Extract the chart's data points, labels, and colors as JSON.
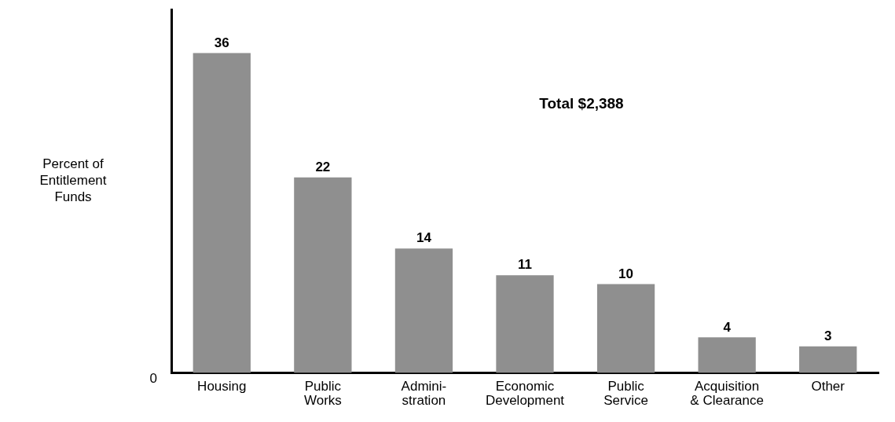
{
  "chart_data": {
    "type": "bar",
    "ylabel": "Percent of\nEntitlement\nFunds",
    "categories": [
      "Housing",
      "Public\nWorks",
      "Admini-\nstration",
      "Economic\nDevelopment",
      "Public\nService",
      "Acquisition\n& Clearance",
      "Other"
    ],
    "values": [
      36,
      22,
      14,
      11,
      10,
      4,
      3
    ],
    "color": "#8f8f8f",
    "data_labels": true,
    "grid": false,
    "legend": false,
    "annotations": [
      "Total $2,388",
      "0"
    ]
  }
}
